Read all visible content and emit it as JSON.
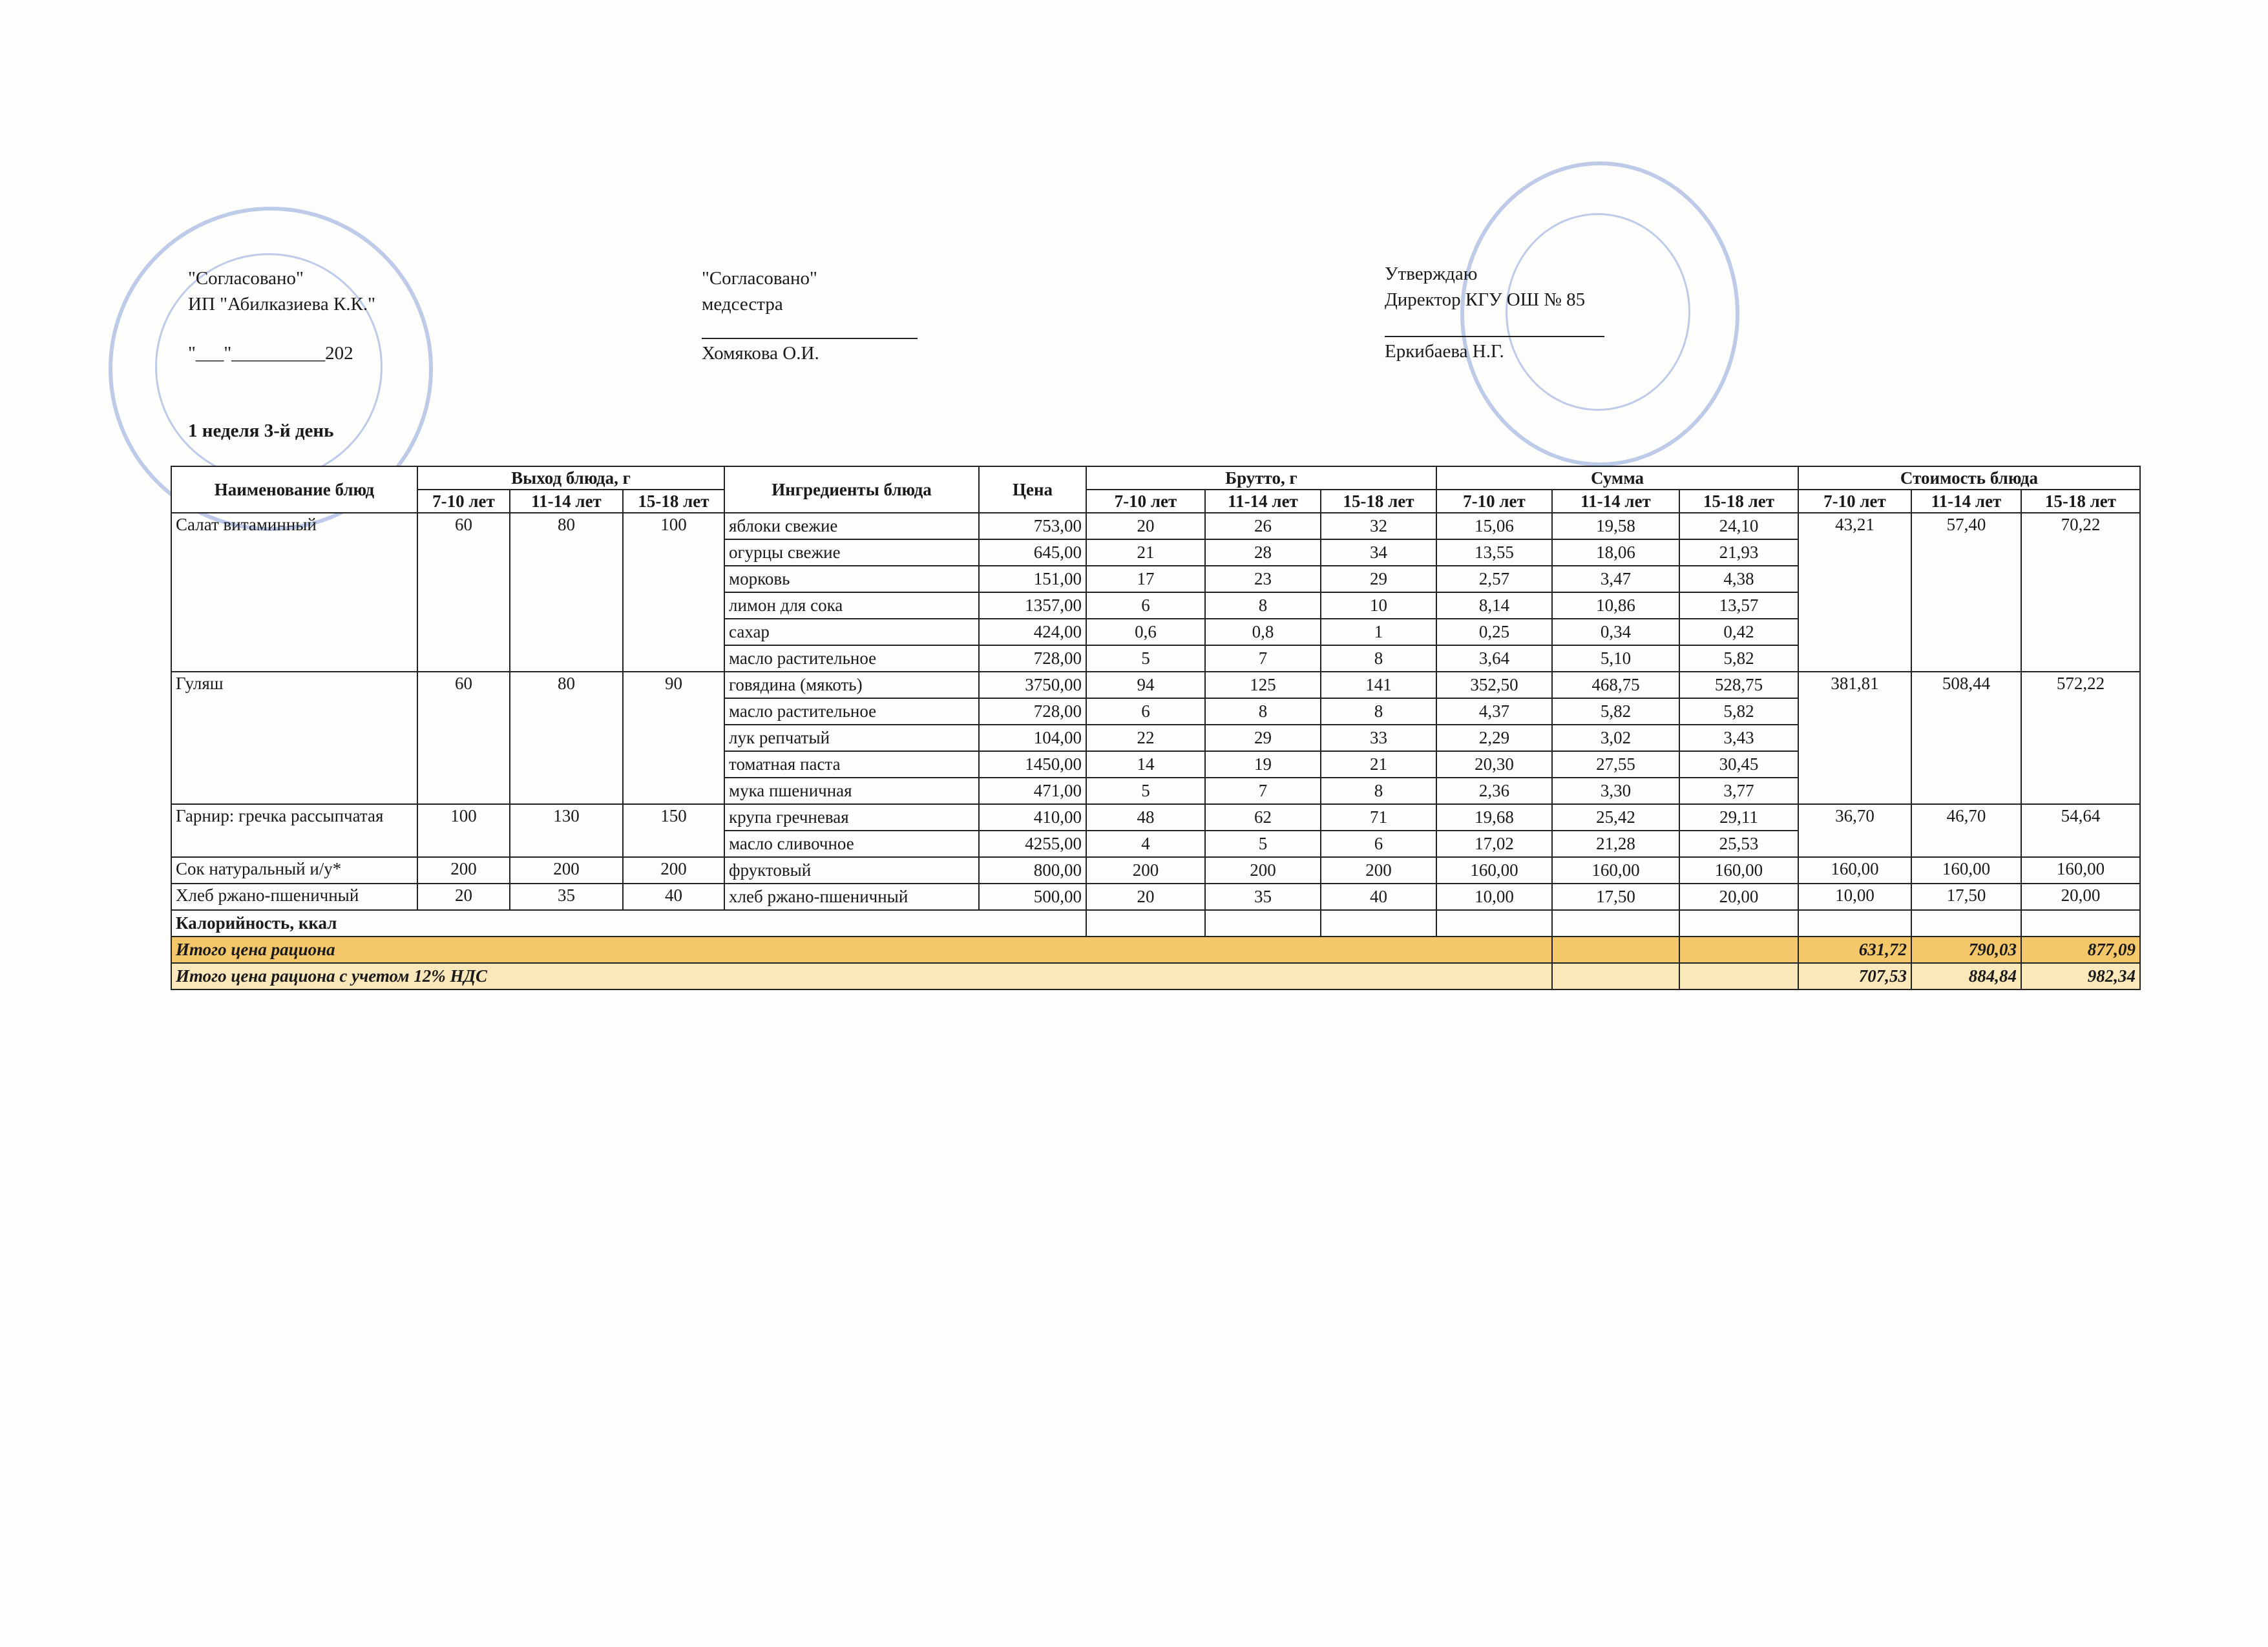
{
  "header": {
    "left": {
      "line1": "\"Согласовано\"",
      "line2": "ИП \"Абилказиева К.К.\"",
      "date": "\"___\"__________202"
    },
    "middle": {
      "line1": "\"Согласовано\"",
      "line2": "медсестра",
      "name": "Хомякова О.И."
    },
    "right": {
      "line1": "Утверждаю",
      "line2": "Директор КГУ ОШ № 85",
      "name": "Еркибаева Н.Г."
    },
    "subtitle": "1 неделя 3-й день"
  },
  "table": {
    "headers": {
      "name": "Наименование блюд",
      "yield": "Выход блюда, г",
      "ingredients": "Ингредиенты блюда",
      "price": "Цена",
      "brutto": "Брутто, г",
      "sum": "Сумма",
      "cost": "Стоимость блюда",
      "ages": [
        "7-10 лет",
        "11-14 лет",
        "15-18 лет"
      ]
    },
    "dishes": [
      {
        "name": "Салат витаминный",
        "yield": [
          "60",
          "80",
          "100"
        ],
        "cost": [
          "43,21",
          "57,40",
          "70,22"
        ],
        "ingredients": [
          {
            "name": "яблоки свежие",
            "price": "753,00",
            "brutto": [
              "20",
              "26",
              "32"
            ],
            "sum": [
              "15,06",
              "19,58",
              "24,10"
            ]
          },
          {
            "name": "огурцы свежие",
            "price": "645,00",
            "brutto": [
              "21",
              "28",
              "34"
            ],
            "sum": [
              "13,55",
              "18,06",
              "21,93"
            ]
          },
          {
            "name": "морковь",
            "price": "151,00",
            "brutto": [
              "17",
              "23",
              "29"
            ],
            "sum": [
              "2,57",
              "3,47",
              "4,38"
            ]
          },
          {
            "name": "лимон для сока",
            "price": "1357,00",
            "brutto": [
              "6",
              "8",
              "10"
            ],
            "sum": [
              "8,14",
              "10,86",
              "13,57"
            ]
          },
          {
            "name": "сахар",
            "price": "424,00",
            "brutto": [
              "0,6",
              "0,8",
              "1"
            ],
            "sum": [
              "0,25",
              "0,34",
              "0,42"
            ]
          },
          {
            "name": "масло растительное",
            "price": "728,00",
            "brutto": [
              "5",
              "7",
              "8"
            ],
            "sum": [
              "3,64",
              "5,10",
              "5,82"
            ]
          }
        ]
      },
      {
        "name": "Гуляш",
        "yield": [
          "60",
          "80",
          "90"
        ],
        "cost": [
          "381,81",
          "508,44",
          "572,22"
        ],
        "ingredients": [
          {
            "name": "говядина (мякоть)",
            "price": "3750,00",
            "brutto": [
              "94",
              "125",
              "141"
            ],
            "sum": [
              "352,50",
              "468,75",
              "528,75"
            ]
          },
          {
            "name": "масло растительное",
            "price": "728,00",
            "brutto": [
              "6",
              "8",
              "8"
            ],
            "sum": [
              "4,37",
              "5,82",
              "5,82"
            ]
          },
          {
            "name": "лук репчатый",
            "price": "104,00",
            "brutto": [
              "22",
              "29",
              "33"
            ],
            "sum": [
              "2,29",
              "3,02",
              "3,43"
            ]
          },
          {
            "name": "томатная паста",
            "price": "1450,00",
            "brutto": [
              "14",
              "19",
              "21"
            ],
            "sum": [
              "20,30",
              "27,55",
              "30,45"
            ]
          },
          {
            "name": "мука пшеничная",
            "price": "471,00",
            "brutto": [
              "5",
              "7",
              "8"
            ],
            "sum": [
              "2,36",
              "3,30",
              "3,77"
            ]
          }
        ]
      },
      {
        "name": "Гарнир: гречка рассыпчатая",
        "yield": [
          "100",
          "130",
          "150"
        ],
        "cost": [
          "36,70",
          "46,70",
          "54,64"
        ],
        "ingredients": [
          {
            "name": "крупа гречневая",
            "price": "410,00",
            "brutto": [
              "48",
              "62",
              "71"
            ],
            "sum": [
              "19,68",
              "25,42",
              "29,11"
            ]
          },
          {
            "name": "масло сливочное",
            "price": "4255,00",
            "brutto": [
              "4",
              "5",
              "6"
            ],
            "sum": [
              "17,02",
              "21,28",
              "25,53"
            ]
          }
        ]
      },
      {
        "name": "Сок натуральный и/у*",
        "yield": [
          "200",
          "200",
          "200"
        ],
        "cost": [
          "160,00",
          "160,00",
          "160,00"
        ],
        "ingredients": [
          {
            "name": "фруктовый",
            "price": "800,00",
            "brutto": [
              "200",
              "200",
              "200"
            ],
            "sum": [
              "160,00",
              "160,00",
              "160,00"
            ]
          }
        ]
      },
      {
        "name": "Хлеб ржано-пшеничный",
        "yield": [
          "20",
          "35",
          "40"
        ],
        "cost": [
          "10,00",
          "17,50",
          "20,00"
        ],
        "ingredients": [
          {
            "name": "хлеб ржано-пшеничный",
            "price": "500,00",
            "brutto": [
              "20",
              "35",
              "40"
            ],
            "sum": [
              "10,00",
              "17,50",
              "20,00"
            ]
          }
        ]
      }
    ],
    "calories": "Калорийность, ккал",
    "totals": [
      {
        "label": "Итого цена рациона",
        "values": [
          "631,72",
          "790,03",
          "877,09"
        ]
      },
      {
        "label": "Итого цена рациона с учетом 12% НДС",
        "values": [
          "707,53",
          "884,84",
          "982,34"
        ]
      }
    ]
  }
}
